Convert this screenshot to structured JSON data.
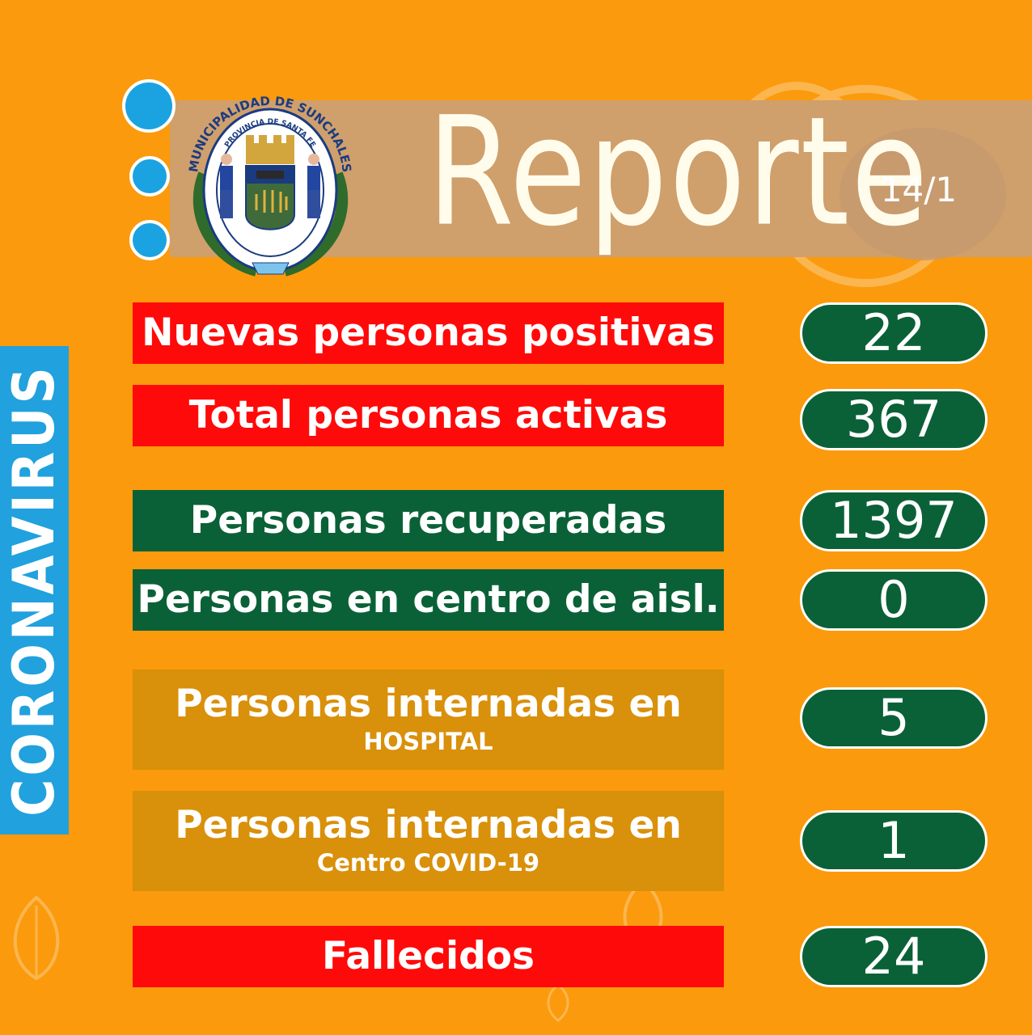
{
  "header": {
    "title": "Reporte",
    "date": "14/1"
  },
  "logo": {
    "arc_text": "MUNICIPALIDAD DE SUNCHALES",
    "inner_text": "PROVINCIA DE SANTA FE"
  },
  "sidebar": {
    "label": "CORONAVIRUS"
  },
  "rows": [
    {
      "label": "Nuevas personas positivas",
      "sub": "",
      "value": "22",
      "color": "#ff0a0a"
    },
    {
      "label": "Total personas activas",
      "sub": "",
      "value": "367",
      "color": "#ff0a0a"
    },
    {
      "label": "Personas recuperadas",
      "sub": "",
      "value": "1397",
      "color": "#0b6137"
    },
    {
      "label": "Personas en centro de aisl.",
      "sub": "",
      "value": "0",
      "color": "#0b6137"
    },
    {
      "label": "Personas internadas en",
      "sub": "HOSPITAL",
      "value": "5",
      "color": "#d9900a"
    },
    {
      "label": "Personas internadas en",
      "sub": "Centro COVID-19",
      "value": "1",
      "color": "#d9900a"
    },
    {
      "label": "Fallecidos",
      "sub": "",
      "value": "24",
      "color": "#ff0a0a"
    }
  ],
  "colors": {
    "background": "#fb9a0c",
    "accent_blue": "#21a1dd",
    "banner": "#cf9f6c"
  }
}
